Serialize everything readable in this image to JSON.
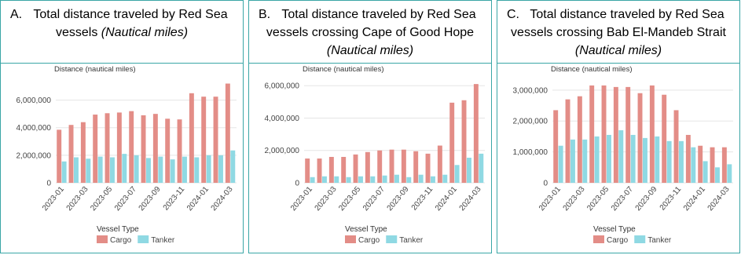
{
  "chart_data": [
    {
      "type": "bar",
      "label": "A.",
      "title": "Total distance traveled by Red Sea vessels",
      "subtitle": "(Nautical miles)",
      "y_label": "Distance (nautical miles)",
      "legend_title": "Vessel Type",
      "categories": [
        "2023-01",
        null,
        "2023-03",
        null,
        "2023-05",
        null,
        "2023-07",
        null,
        "2023-09",
        null,
        "2023-11",
        null,
        "2024-01",
        null,
        "2024-03"
      ],
      "series": [
        {
          "name": "Cargo",
          "color": "#e38d87",
          "values": [
            3850000,
            4200000,
            4400000,
            4950000,
            5050000,
            5100000,
            5200000,
            4900000,
            5000000,
            4650000,
            4600000,
            6500000,
            6250000,
            6250000,
            7200000
          ]
        },
        {
          "name": "Tanker",
          "color": "#8fd9e3",
          "values": [
            1550000,
            1850000,
            1750000,
            1900000,
            1850000,
            2100000,
            2000000,
            1800000,
            1900000,
            1700000,
            1900000,
            1850000,
            2000000,
            2000000,
            2350000
          ]
        }
      ],
      "ylim": [
        0,
        7400000
      ],
      "yticks": [
        0,
        {
          "value": 2000000,
          "label": "2,000,000"
        },
        {
          "value": 4000000,
          "label": "4,000,000"
        },
        {
          "value": 6000000,
          "label": "6,000,000"
        }
      ],
      "grid": true
    },
    {
      "type": "bar",
      "label": "B.",
      "title": "Total distance traveled by Red Sea vessels crossing Cape of Good Hope",
      "subtitle": "(Nautical miles)",
      "y_label": "Distance (nautical miles)",
      "legend_title": "Vessel Type",
      "categories": [
        "2023-01",
        null,
        "2023-03",
        null,
        "2023-05",
        null,
        "2023-07",
        null,
        "2023-09",
        null,
        "2023-11",
        null,
        "2024-01",
        null,
        "2024-03"
      ],
      "series": [
        {
          "name": "Cargo",
          "color": "#e38d87",
          "values": [
            1500000,
            1500000,
            1600000,
            1600000,
            1750000,
            1900000,
            2000000,
            2050000,
            2050000,
            1950000,
            1800000,
            2300000,
            4950000,
            5100000,
            6100000
          ]
        },
        {
          "name": "Tanker",
          "color": "#8fd9e3",
          "values": [
            350000,
            400000,
            400000,
            350000,
            400000,
            400000,
            450000,
            500000,
            350000,
            500000,
            400000,
            500000,
            1100000,
            1550000,
            1800000
          ]
        }
      ],
      "ylim": [
        0,
        6300000
      ],
      "yticks": [
        0,
        {
          "value": 2000000,
          "label": "2,000,000"
        },
        {
          "value": 4000000,
          "label": "4,000,000"
        },
        {
          "value": 6000000,
          "label": "6,000,000"
        }
      ],
      "grid": true
    },
    {
      "type": "bar",
      "label": "C.",
      "title": "Total distance traveled by Red Sea vessels crossing Bab El-Mandeb Strait",
      "subtitle": "(Nautical miles)",
      "y_label": "Distance (nautical miles)",
      "legend_title": "Vessel Type",
      "categories": [
        "2023-01",
        null,
        "2023-03",
        null,
        "2023-05",
        null,
        "2023-07",
        null,
        "2023-09",
        null,
        "2023-11",
        null,
        "2024-01",
        null,
        "2024-03"
      ],
      "series": [
        {
          "name": "Cargo",
          "color": "#e38d87",
          "values": [
            2350000,
            2700000,
            2800000,
            3150000,
            3150000,
            3100000,
            3100000,
            2900000,
            3150000,
            2850000,
            2350000,
            1550000,
            1200000,
            1150000,
            1150000
          ]
        },
        {
          "name": "Tanker",
          "color": "#8fd9e3",
          "values": [
            1200000,
            1400000,
            1400000,
            1500000,
            1550000,
            1700000,
            1550000,
            1450000,
            1500000,
            1350000,
            1350000,
            1150000,
            700000,
            500000,
            600000
          ]
        }
      ],
      "ylim": [
        0,
        3300000
      ],
      "yticks": [
        0,
        {
          "value": 1000000,
          "label": "1,000,000"
        },
        {
          "value": 2000000,
          "label": "2,000,000"
        },
        {
          "value": 3000000,
          "label": "3,000,000"
        }
      ],
      "grid": true
    }
  ]
}
